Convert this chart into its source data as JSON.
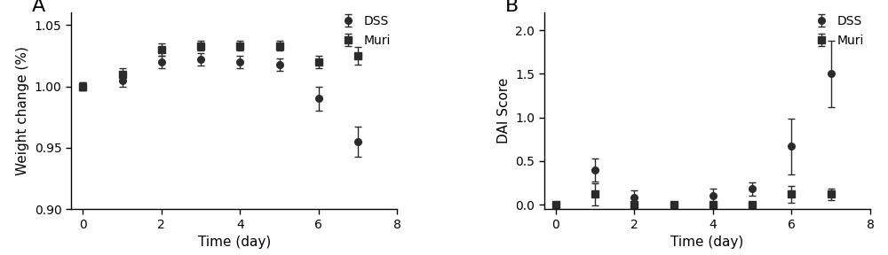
{
  "panel_A": {
    "days": [
      0,
      1,
      2,
      3,
      4,
      5,
      6,
      7
    ],
    "DSS_y": [
      1.0,
      1.005,
      1.02,
      1.022,
      1.02,
      1.018,
      0.99,
      0.955
    ],
    "DSS_err": [
      0.003,
      0.005,
      0.005,
      0.005,
      0.005,
      0.005,
      0.01,
      0.012
    ],
    "Muri_y": [
      1.0,
      1.01,
      1.03,
      1.033,
      1.033,
      1.033,
      1.02,
      1.025
    ],
    "Muri_err": [
      0.003,
      0.005,
      0.005,
      0.004,
      0.004,
      0.004,
      0.005,
      0.007
    ],
    "ylabel": "Weight change (%)",
    "xlabel": "Time (day)",
    "panel_label": "A",
    "ylim": [
      0.9,
      1.06
    ],
    "yticks": [
      0.9,
      0.95,
      1.0,
      1.05
    ],
    "xlim": [
      -0.3,
      8
    ],
    "xticks": [
      0,
      2,
      4,
      6,
      8
    ]
  },
  "panel_B": {
    "days": [
      0,
      1,
      2,
      3,
      4,
      5,
      6,
      7
    ],
    "DSS_y": [
      0.0,
      0.4,
      0.08,
      0.0,
      0.1,
      0.18,
      0.67,
      1.5
    ],
    "DSS_err": [
      0.0,
      0.13,
      0.08,
      0.0,
      0.08,
      0.08,
      0.32,
      0.38
    ],
    "Muri_y": [
      0.0,
      0.12,
      0.0,
      0.0,
      0.0,
      0.0,
      0.12,
      0.12
    ],
    "Muri_err": [
      0.0,
      0.13,
      0.08,
      0.0,
      0.0,
      0.0,
      0.1,
      0.07
    ],
    "ylabel": "DAI Score",
    "xlabel": "Time (day)",
    "panel_label": "B",
    "ylim": [
      -0.05,
      2.2
    ],
    "yticks": [
      0.0,
      0.5,
      1.0,
      1.5,
      2.0
    ],
    "xlim": [
      -0.3,
      8
    ],
    "xticks": [
      0,
      2,
      4,
      6,
      8
    ]
  },
  "line_color": "#2b2b2b",
  "marker_DSS": "o",
  "marker_Muri": "s",
  "markersize": 5.5,
  "linewidth": 1.4,
  "capsize": 3,
  "legend_labels": [
    "DSS",
    "Muri"
  ],
  "font_size": 10,
  "label_fontsize": 11,
  "panel_label_fontsize": 16,
  "tick_fontsize": 10
}
